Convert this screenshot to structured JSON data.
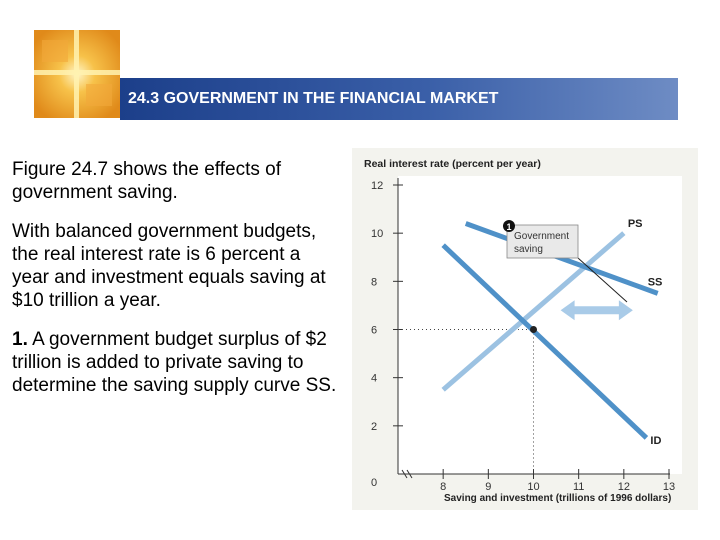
{
  "slide": {
    "title": "24.3 GOVERNMENT IN THE FINANCIAL MARKET",
    "paragraphs": [
      {
        "number": "",
        "text": "Figure 24.7 shows the effects of government saving."
      },
      {
        "number": "",
        "text": "With balanced government budgets, the real interest rate is 6 percent a year and investment equals saving at $10 trillion a year."
      },
      {
        "number": "1.",
        "text": " A government budget surplus of $2 trillion is added to private saving to determine the saving supply curve SS."
      }
    ]
  },
  "colors": {
    "title_bar": "#1c3f8a",
    "ss_curve": "#4f91c8",
    "id_curve": "#4f91c8",
    "ps_curve": "#9cc2e2",
    "arrow": "#a9cbe8",
    "plot_bg": "#ffffff",
    "chart_bg": "#f3f3ee"
  },
  "chart_data": {
    "type": "line",
    "ylabel": "Real interest rate (percent per year)",
    "xlabel": "Saving and investment (trillions of 1996 dollars)",
    "origin_label": "0",
    "xlim": [
      7,
      13
    ],
    "ylim": [
      0,
      12
    ],
    "x_ticks": [
      8,
      9,
      10,
      11,
      12,
      13
    ],
    "y_ticks": [
      2,
      4,
      6,
      8,
      10,
      12
    ],
    "series": [
      {
        "name": "PS",
        "points": [
          [
            8,
            3.5
          ],
          [
            12,
            10
          ]
        ]
      },
      {
        "name": "SS",
        "points": [
          [
            8.5,
            10.4
          ],
          [
            12.75,
            7.5
          ]
        ],
        "note": "saving supply"
      },
      {
        "name": "ID",
        "points": [
          [
            8,
            9.5
          ],
          [
            12.5,
            1.5
          ]
        ]
      }
    ],
    "equilibrium": {
      "x": 10,
      "y": 6
    },
    "annotation": {
      "marker": "1",
      "text_line1": "Government",
      "text_line2": "saving"
    },
    "shift_arrow": {
      "from_x": 10.6,
      "to_x": 12.2,
      "y": 6.8
    }
  }
}
